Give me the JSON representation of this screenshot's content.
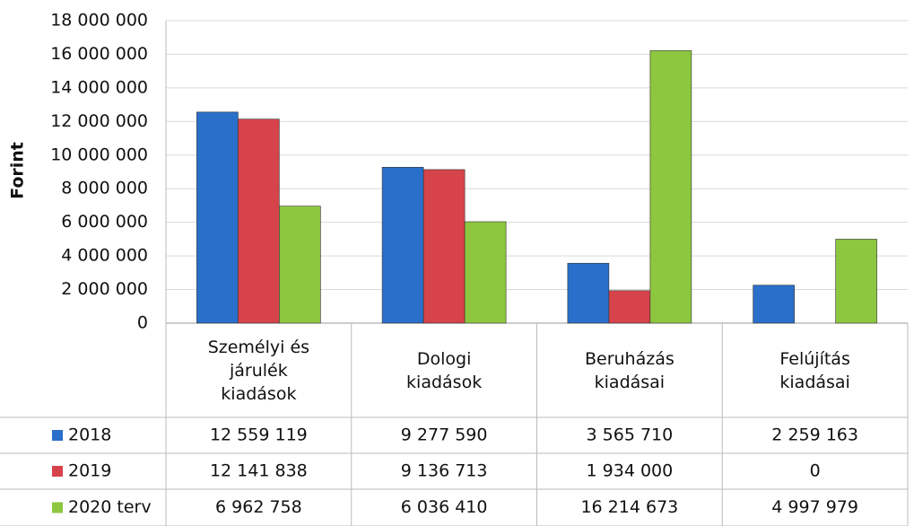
{
  "chart_data": {
    "type": "bar",
    "y_label": "Forint",
    "categories": [
      "Személyi és járulék kiadások",
      "Dologi kiadások",
      "Beruházás kiadásai",
      "Felújítás kiadásai"
    ],
    "series": [
      {
        "name": "2018",
        "color": "#2a6fc9",
        "values": [
          12559119,
          9277590,
          3565710,
          2259163
        ],
        "value_labels": [
          "12 559 119",
          "9 277 590",
          "3 565 710",
          "2 259 163"
        ]
      },
      {
        "name": "2019",
        "color": "#d6434b",
        "values": [
          12141838,
          9136713,
          1934000,
          0
        ],
        "value_labels": [
          "12 141 838",
          "9 136 713",
          "1 934 000",
          "0"
        ]
      },
      {
        "name": "2020 terv",
        "color": "#8dc63f",
        "values": [
          6962758,
          6036410,
          16214673,
          4997979
        ],
        "value_labels": [
          "6 962 758",
          "6 036 410",
          "16 214 673",
          "4 997 979"
        ]
      }
    ],
    "ylim": [
      0,
      18000000
    ],
    "yticks": [
      {
        "value": 0,
        "label": "0"
      },
      {
        "value": 2000000,
        "label": "2 000 000"
      },
      {
        "value": 4000000,
        "label": "4 000 000"
      },
      {
        "value": 6000000,
        "label": "6 000 000"
      },
      {
        "value": 8000000,
        "label": "8 000 000"
      },
      {
        "value": 10000000,
        "label": "10 000 000"
      },
      {
        "value": 12000000,
        "label": "12 000 000"
      },
      {
        "value": 14000000,
        "label": "14 000 000"
      },
      {
        "value": 16000000,
        "label": "16 000 000"
      },
      {
        "value": 18000000,
        "label": "18 000 000"
      }
    ],
    "grid": true
  }
}
